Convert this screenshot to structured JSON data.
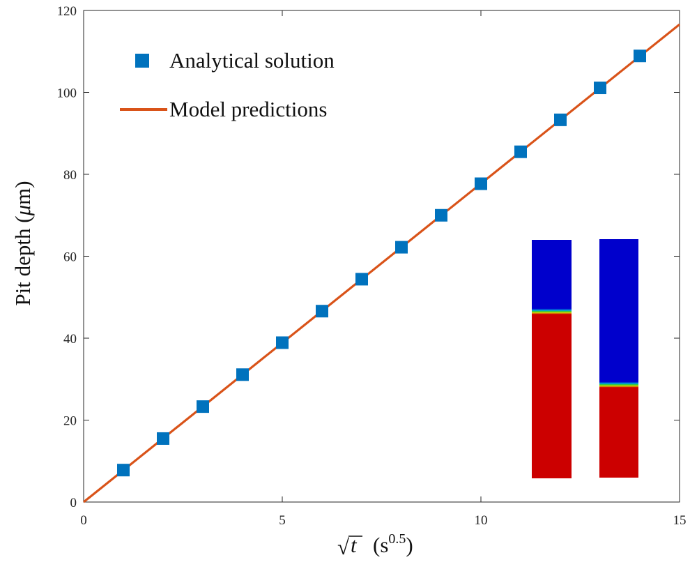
{
  "chart_data": {
    "type": "scatter",
    "xlabel": {
      "sqrt_symbol": "√",
      "variable": "t",
      "unit_open": "(s",
      "unit_exponent": "0.5",
      "unit_close": ")"
    },
    "ylabel": {
      "text": "Pit depth (",
      "mu": "μ",
      "unit": "m)"
    },
    "xlim": [
      0,
      15
    ],
    "ylim": [
      0,
      120
    ],
    "x_ticks": [
      "0",
      "5",
      "10",
      "15"
    ],
    "y_ticks": [
      "0",
      "20",
      "40",
      "60",
      "80",
      "100",
      "120"
    ],
    "x_tick_values": [
      0,
      5,
      10,
      15
    ],
    "y_tick_values": [
      0,
      20,
      40,
      60,
      80,
      100,
      120
    ],
    "grid": false,
    "legend_position": "top-left",
    "series": [
      {
        "name": "Analytical solution",
        "mode": "markers",
        "marker": "square",
        "color": "#0072BD",
        "x": [
          1,
          2,
          3,
          4,
          5,
          6,
          7,
          8,
          9,
          10,
          11,
          12,
          13,
          14
        ],
        "y": [
          7.8,
          15.5,
          23.3,
          31.1,
          38.9,
          46.6,
          54.4,
          62.2,
          70.0,
          77.7,
          85.5,
          93.3,
          101.1,
          108.9
        ]
      },
      {
        "name": "Model predictions",
        "mode": "line",
        "color": "#D95319",
        "x": [
          0,
          15
        ],
        "y": [
          0,
          116.6
        ]
      }
    ],
    "inset": {
      "description_colors": {
        "corroded": "#0000CC",
        "metal": "#CC0000",
        "interface": "#33CC33"
      },
      "columns": [
        {
          "interface_fraction_from_top": 0.3
        },
        {
          "interface_fraction_from_top": 0.61
        }
      ]
    }
  }
}
